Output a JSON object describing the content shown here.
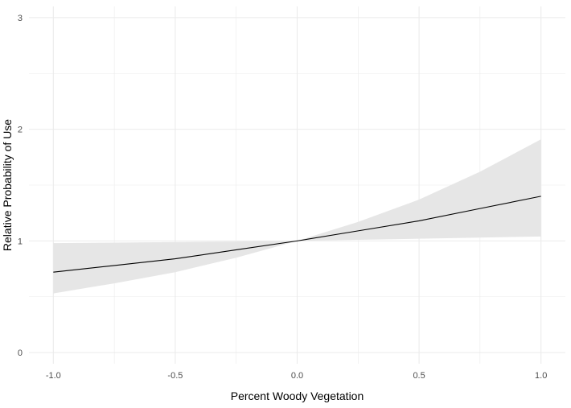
{
  "chart_data": {
    "type": "line",
    "title": "",
    "xlabel": "Percent Woody Vegetation",
    "ylabel": "Relative Probability of Use",
    "xlim": [
      -1.1,
      1.1
    ],
    "ylim": [
      -0.1,
      3.1
    ],
    "x_ticks": [
      -1.0,
      -0.5,
      0.0,
      0.5,
      1.0
    ],
    "x_tick_labels": [
      "-1.0",
      "-0.5",
      "0.0",
      "0.5",
      "1.0"
    ],
    "y_ticks": [
      0,
      1,
      2,
      3
    ],
    "y_tick_labels": [
      "0",
      "1",
      "2",
      "3"
    ],
    "grid": true,
    "legend": "none",
    "colors": {
      "line": "#000000",
      "ribbon": "#e6e6e6",
      "grid": "#ebebeb"
    },
    "x": [
      -1.0,
      -0.75,
      -0.5,
      -0.25,
      0.0,
      0.25,
      0.5,
      0.75,
      1.0
    ],
    "series": [
      {
        "values": [
          0.72,
          0.78,
          0.84,
          0.92,
          1.0,
          1.09,
          1.18,
          1.29,
          1.4
        ]
      }
    ],
    "ribbon": {
      "lower": [
        0.53,
        0.62,
        0.72,
        0.85,
        1.0,
        1.01,
        1.02,
        1.03,
        1.04
      ],
      "upper": [
        0.98,
        0.985,
        0.99,
        0.995,
        1.0,
        1.17,
        1.37,
        1.62,
        1.91
      ]
    }
  }
}
